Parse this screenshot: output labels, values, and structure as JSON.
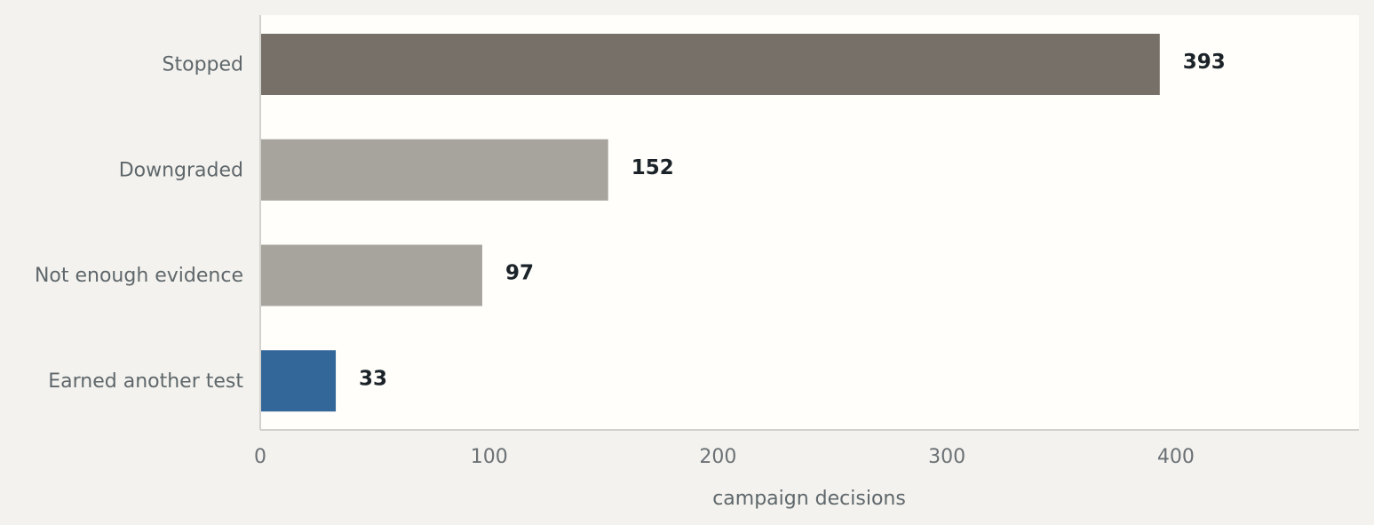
{
  "chart_data": {
    "type": "bar",
    "orientation": "horizontal",
    "categories": [
      "Stopped",
      "Downgraded",
      "Not enough evidence",
      "Earned another test"
    ],
    "values": [
      393,
      152,
      97,
      33
    ],
    "colors": [
      "#777069",
      "#a7a49d",
      "#a7a49d",
      "#336799"
    ],
    "xlabel": "campaign decisions",
    "ylabel": "",
    "title": "",
    "xlim": [
      0,
      480
    ],
    "xticks": [
      0,
      100,
      200,
      300,
      400
    ],
    "grid": false,
    "legend": "none",
    "plot_background": "#fffefa",
    "page_background": "#f3f2ee",
    "axis_color": "#d3d1cc"
  }
}
